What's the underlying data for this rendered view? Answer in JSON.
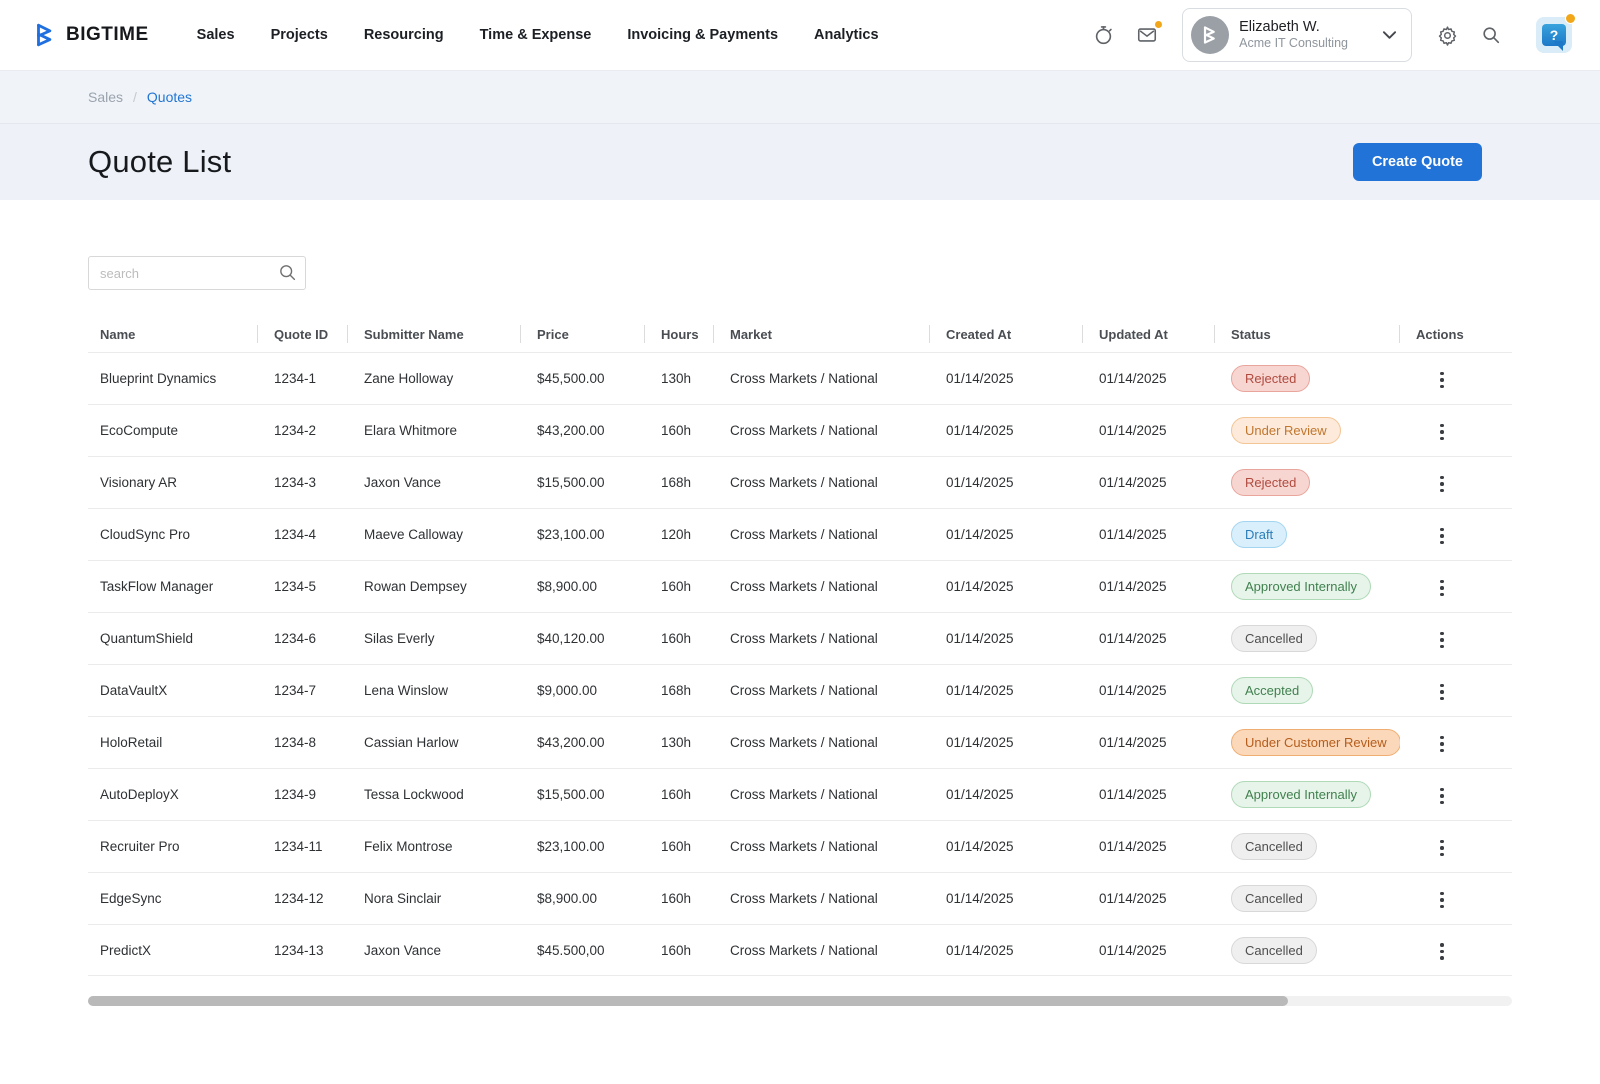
{
  "brand": {
    "name": "BIGTIME"
  },
  "nav": {
    "items": [
      "Sales",
      "Projects",
      "Resourcing",
      "Time & Expense",
      "Invoicing & Payments",
      "Analytics"
    ]
  },
  "header_icons": {
    "timer": "timer-icon",
    "mail": "mail-icon",
    "settings": "gear-icon",
    "search": "search-icon",
    "help": "?"
  },
  "user": {
    "name": "Elizabeth W.",
    "company": "Acme IT Consulting"
  },
  "breadcrumb": {
    "parent": "Sales",
    "separator": "/",
    "current": "Quotes"
  },
  "page": {
    "title": "Quote List",
    "create_button": "Create Quote"
  },
  "search": {
    "placeholder": "search"
  },
  "table": {
    "columns": [
      "Name",
      "Quote ID",
      "Submitter Name",
      "Price",
      "Hours",
      "Market",
      "Created At",
      "Updated At",
      "Status",
      "Actions"
    ],
    "rows": [
      {
        "name": "Blueprint Dynamics",
        "quote_id": "1234-1",
        "submitter": "Zane Holloway",
        "price": "$45,500.00",
        "hours": "130h",
        "market": "Cross Markets / National",
        "created_at": "01/14/2025",
        "updated_at": "01/14/2025",
        "status": "Rejected"
      },
      {
        "name": "EcoCompute",
        "quote_id": "1234-2",
        "submitter": "Elara Whitmore",
        "price": "$43,200.00",
        "hours": "160h",
        "market": "Cross Markets / National",
        "created_at": "01/14/2025",
        "updated_at": "01/14/2025",
        "status": "Under Review"
      },
      {
        "name": "Visionary AR",
        "quote_id": "1234-3",
        "submitter": "Jaxon Vance",
        "price": "$15,500.00",
        "hours": "168h",
        "market": "Cross Markets / National",
        "created_at": "01/14/2025",
        "updated_at": "01/14/2025",
        "status": "Rejected"
      },
      {
        "name": "CloudSync Pro",
        "quote_id": "1234-4",
        "submitter": "Maeve Calloway",
        "price": "$23,100.00",
        "hours": "120h",
        "market": "Cross Markets / National",
        "created_at": "01/14/2025",
        "updated_at": "01/14/2025",
        "status": "Draft"
      },
      {
        "name": "TaskFlow Manager",
        "quote_id": "1234-5",
        "submitter": "Rowan Dempsey",
        "price": "$8,900.00",
        "hours": "160h",
        "market": "Cross Markets / National",
        "created_at": "01/14/2025",
        "updated_at": "01/14/2025",
        "status": "Approved Internally"
      },
      {
        "name": "QuantumShield",
        "quote_id": "1234-6",
        "submitter": "Silas Everly",
        "price": "$40,120.00",
        "hours": "160h",
        "market": "Cross Markets / National",
        "created_at": "01/14/2025",
        "updated_at": "01/14/2025",
        "status": "Cancelled"
      },
      {
        "name": "DataVaultX",
        "quote_id": "1234-7",
        "submitter": "Lena Winslow",
        "price": "$9,000.00",
        "hours": "168h",
        "market": "Cross Markets / National",
        "created_at": "01/14/2025",
        "updated_at": "01/14/2025",
        "status": "Accepted"
      },
      {
        "name": "HoloRetail",
        "quote_id": "1234-8",
        "submitter": "Cassian Harlow",
        "price": "$43,200.00",
        "hours": "130h",
        "market": "Cross Markets / National",
        "created_at": "01/14/2025",
        "updated_at": "01/14/2025",
        "status": "Under Customer Review"
      },
      {
        "name": "AutoDeployX",
        "quote_id": "1234-9",
        "submitter": "Tessa Lockwood",
        "price": "$15,500.00",
        "hours": "160h",
        "market": "Cross Markets / National",
        "created_at": "01/14/2025",
        "updated_at": "01/14/2025",
        "status": "Approved Internally"
      },
      {
        "name": "Recruiter Pro",
        "quote_id": "1234-11",
        "submitter": "Felix Montrose",
        "price": "$23,100.00",
        "hours": "160h",
        "market": "Cross Markets / National",
        "created_at": "01/14/2025",
        "updated_at": "01/14/2025",
        "status": "Cancelled"
      },
      {
        "name": "EdgeSync",
        "quote_id": "1234-12",
        "submitter": "Nora Sinclair",
        "price": "$8,900.00",
        "hours": "160h",
        "market": "Cross Markets / National",
        "created_at": "01/14/2025",
        "updated_at": "01/14/2025",
        "status": "Cancelled"
      },
      {
        "name": "PredictX",
        "quote_id": "1234-13",
        "submitter": "Jaxon Vance",
        "price": "$45.500,00",
        "hours": "160h",
        "market": "Cross Markets / National",
        "created_at": "01/14/2025",
        "updated_at": "01/14/2025",
        "status": "Cancelled"
      }
    ]
  },
  "status_styles": {
    "Rejected": {
      "bg": "#f7d6d2",
      "border": "#e9a59c",
      "text": "#b04a3e"
    },
    "Under Review": {
      "bg": "#fdeada",
      "border": "#f3c494",
      "text": "#c1762d"
    },
    "Draft": {
      "bg": "#d9effb",
      "border": "#a3d5f0",
      "text": "#2b7cb8"
    },
    "Approved Internally": {
      "bg": "#e6f4e9",
      "border": "#afd9b7",
      "text": "#41804f"
    },
    "Cancelled": {
      "bg": "#efefef",
      "border": "#d8d8d8",
      "text": "#4f4f4f"
    },
    "Accepted": {
      "bg": "#e6f4e9",
      "border": "#afd9b7",
      "text": "#41804f"
    },
    "Under Customer Review": {
      "bg": "#fbd8b9",
      "border": "#f0ad72",
      "text": "#b55d1d"
    }
  },
  "colors": {
    "accent": "#2173d8",
    "breadcrumb_link": "#2276d3",
    "notification_dot": "#f2a71b",
    "logo_blue": "#1f6fe0"
  }
}
